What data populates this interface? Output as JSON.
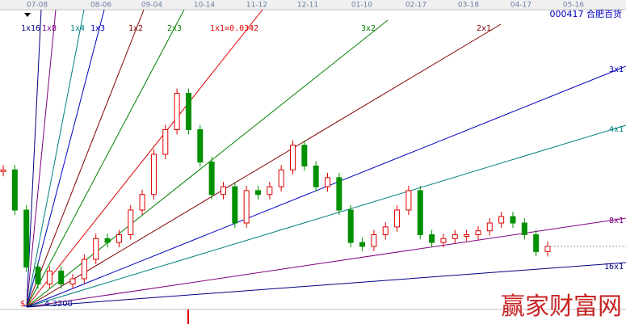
{
  "chart_data": {
    "type": "candlestick",
    "title": "000417 合肥百货",
    "date_labels": [
      "07-08",
      "08-06",
      "09-04",
      "10-14",
      "11-12",
      "12-11",
      "01-10",
      "02-17",
      "03-18",
      "04-17",
      "05-16"
    ],
    "fan_labels": [
      "1x16",
      "1x8",
      "1x4",
      "1x3",
      "1x2",
      "2x3",
      "1x1=0.0342",
      "3x2",
      "2x1",
      "3x1",
      "4x1",
      "8x1",
      "16x1"
    ],
    "base_symbol": "$",
    "base_price": {
      "value": 4.32,
      "label": "4.3200"
    },
    "watermark": "赢家财富网",
    "ylim": [
      4.2,
      6.68
    ],
    "up_color": "#e00000",
    "down_color": "#009000",
    "values": [
      5.37,
      5.06,
      4.62,
      4.49,
      4.59,
      4.49,
      4.53,
      4.68,
      4.84,
      4.81,
      4.87,
      5.06,
      5.18,
      5.49,
      5.68,
      5.96,
      5.68,
      5.43,
      5.18,
      5.24,
      4.96,
      5.21,
      5.18,
      5.24,
      5.37,
      5.56,
      5.4,
      5.24,
      5.31,
      5.06,
      4.81,
      4.78,
      4.87,
      4.93,
      5.06,
      5.21,
      4.87,
      4.81,
      4.84,
      4.87,
      4.87,
      4.9,
      4.96,
      5.01,
      4.96,
      4.87,
      4.74,
      4.78
    ]
  }
}
